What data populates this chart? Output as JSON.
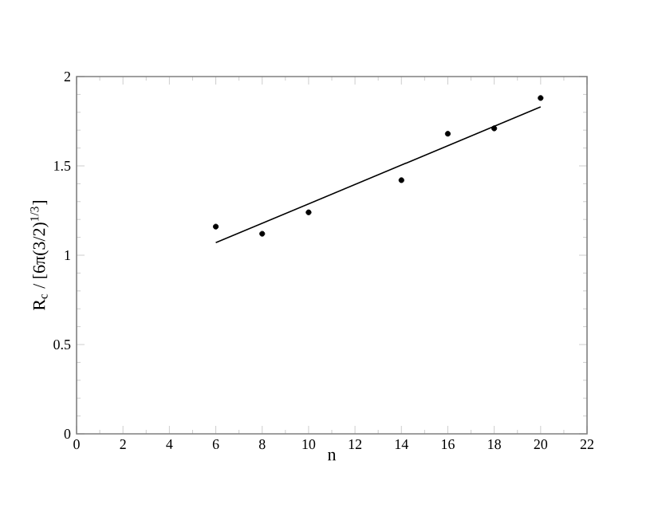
{
  "chart_data": {
    "type": "scatter",
    "xlabel": "n",
    "ylabel": "R$_{c}$ / [6π(3/2)$^{1/3}$]",
    "xlim": [
      0,
      22
    ],
    "ylim": [
      0,
      2
    ],
    "xticks": [
      0,
      2,
      4,
      6,
      8,
      10,
      12,
      14,
      16,
      18,
      20,
      22
    ],
    "yticks": [
      0,
      0.5,
      1,
      1.5,
      2
    ],
    "grid": false,
    "marker": "circle",
    "series": [
      {
        "color": "#000000",
        "x": [
          6,
          8,
          10,
          14,
          16,
          18,
          20
        ],
        "values": [
          1.16,
          1.12,
          1.24,
          1.42,
          1.68,
          1.71,
          1.88
        ]
      },
      {
        "type": "line",
        "color": "#000000",
        "marker": "none",
        "line_style": "solid",
        "x": [
          6,
          20
        ],
        "values": [
          1.07,
          1.83
        ]
      }
    ]
  }
}
